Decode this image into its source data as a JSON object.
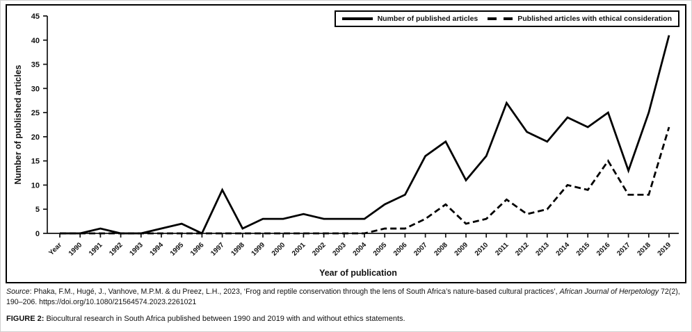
{
  "chart_data": {
    "type": "line",
    "title": "",
    "categories": [
      "Year",
      "1990",
      "1991",
      "1992",
      "1993",
      "1994",
      "1995",
      "1996",
      "1997",
      "1998",
      "1999",
      "2000",
      "2001",
      "2002",
      "2003",
      "2004",
      "2005",
      "2006",
      "2007",
      "2008",
      "2009",
      "2010",
      "2011",
      "2012",
      "2013",
      "2014",
      "2015",
      "2016",
      "2017",
      "2018",
      "2019"
    ],
    "series": [
      {
        "name": "Number of published articles",
        "style": "solid",
        "values": [
          0,
          0,
          1,
          0,
          0,
          1,
          2,
          0,
          9,
          1,
          3,
          3,
          4,
          3,
          3,
          3,
          6,
          8,
          16,
          19,
          11,
          16,
          27,
          21,
          19,
          24,
          22,
          25,
          13,
          25,
          41
        ]
      },
      {
        "name": "Published articles with ethical consideration",
        "style": "dashed",
        "values": [
          0,
          0,
          0,
          0,
          0,
          0,
          0,
          0,
          0,
          0,
          0,
          0,
          0,
          0,
          0,
          0,
          1,
          1,
          3,
          6,
          2,
          3,
          7,
          4,
          5,
          10,
          9,
          15,
          8,
          8,
          22
        ]
      }
    ],
    "xlabel": "Year of publication",
    "ylabel": "Number of published articles",
    "ylim": [
      0,
      45
    ],
    "ytick_step": 5,
    "grid": false,
    "legend_position": "top-right",
    "line_color": "#000000"
  },
  "source": {
    "label_italic": "Source",
    "text": ": Phaka, F.M., Hugé, J., Vanhove, M.P.M. & du Preez, L.H., 2023, ‘Frog and reptile conservation through the lens of South Africa’s nature-based cultural practices’, ",
    "journal_italic": "African Journal of Herpetology",
    "tail": " 72(2), 190–206. https://doi.org/10.1080/21564574.2023.2261021"
  },
  "caption": {
    "label": "FIGURE 2:",
    "text": "Biocultural research in South Africa published between 1990 and 2019 with and without ethics statements."
  }
}
